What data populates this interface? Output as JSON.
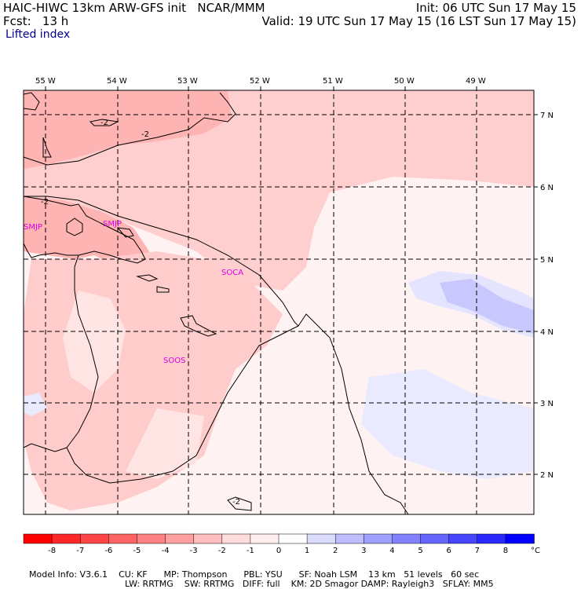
{
  "header": {
    "model_line": "HAIC-HIWC 13km ARW-GFS init   NCAR/MMM",
    "fcst_line": "Fcst:   13 h",
    "init_line": "Init: 06 UTC Sun 17 May 15",
    "valid_line": "Valid: 19 UTC Sun 17 May 15 (16 LST Sun 17 May 15)",
    "field_name": "Lifted index"
  },
  "map": {
    "lon_labels": [
      "55 W",
      "54 W",
      "53 W",
      "52 W",
      "51 W",
      "50 W",
      "49 W"
    ],
    "lat_labels": [
      "7 N",
      "6 N",
      "5 N",
      "4 N",
      "3 N",
      "2 N"
    ],
    "stations": [
      "SMJP",
      "SMJP",
      "SOCA",
      "SOOS"
    ],
    "contour_labels": [
      "-2",
      "-2",
      "-2",
      "-2"
    ]
  },
  "colorbar": {
    "unit": "°C",
    "ticks": [
      "-8",
      "-7",
      "-6",
      "-5",
      "-4",
      "-3",
      "-2",
      "-1",
      "0",
      "1",
      "2",
      "3",
      "4",
      "5",
      "6",
      "7",
      "8"
    ],
    "colors": [
      "#ff0000",
      "#ff2828",
      "#ff4646",
      "#ff6464",
      "#ff8282",
      "#ffa0a0",
      "#ffbebe",
      "#ffdcdc",
      "#ffeeee",
      "#ffffff",
      "#dcdcff",
      "#bebeff",
      "#a0a0ff",
      "#8282ff",
      "#6464ff",
      "#4646ff",
      "#2828ff",
      "#0000ff"
    ]
  },
  "footer": {
    "line1": [
      "Model Info: V3.6.1",
      "CU: KF",
      "MP: Thompson",
      "PBL: YSU",
      "SF: Noah LSM",
      "13 km",
      "51 levels",
      "60 sec"
    ],
    "line2": [
      "LW: RRTMG",
      "SW: RRTMG",
      "DIFF: full",
      "KM: 2D Smagor",
      "DAMP: Rayleigh3",
      "SFLAY: MM5"
    ]
  }
}
